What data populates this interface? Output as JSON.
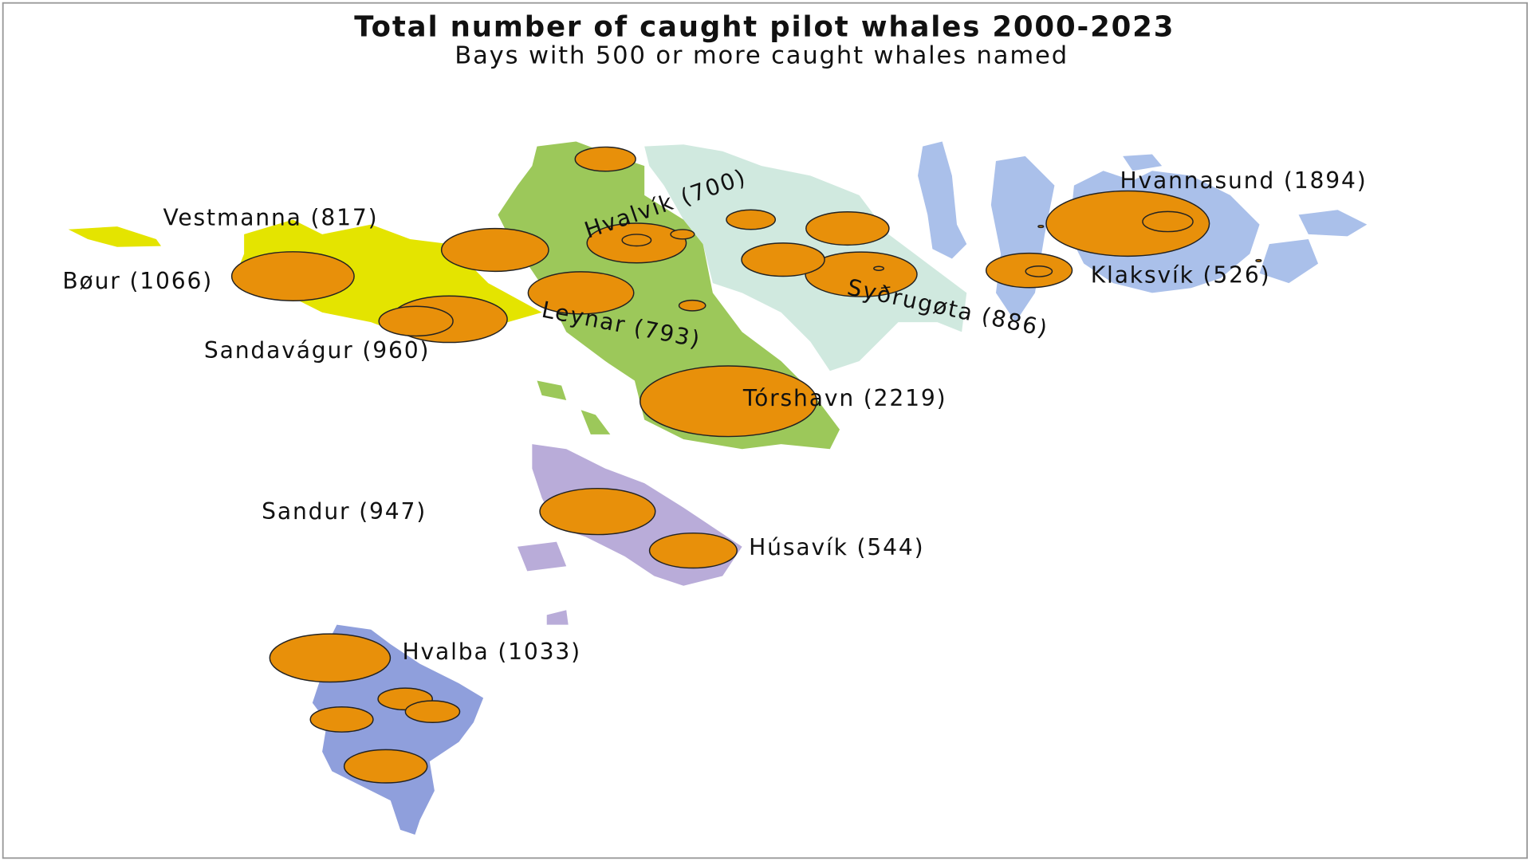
{
  "title": "Total number of caught pilot whales 2000-2023",
  "subtitle": "Bays with 500 or more caught whales named",
  "bays": [
    {
      "label": "Vestmanna (817)",
      "count": 817
    },
    {
      "label": "Bøur (1066)",
      "count": 1066
    },
    {
      "label": "Sandavágur (960)",
      "count": 960
    },
    {
      "label": "Hvalvík (700)",
      "count": 700
    },
    {
      "label": "Leynar (793)",
      "count": 793
    },
    {
      "label": "Syðrugøta (886)",
      "count": 886
    },
    {
      "label": "Klaksvík (526)",
      "count": 526
    },
    {
      "label": "Hvannasund (1894)",
      "count": 1894
    },
    {
      "label": "Tórshavn (2219)",
      "count": 2219
    },
    {
      "label": "Sandur (947)",
      "count": 947
    },
    {
      "label": "Húsavík (544)",
      "count": 544
    },
    {
      "label": "Hvalba (1033)",
      "count": 1033
    },
    {
      "count": 260
    },
    {
      "count": 170
    },
    {
      "count": 490
    },
    {
      "count": 490
    },
    {
      "count": 60
    },
    {
      "count": 40
    },
    {
      "count": 50
    },
    {
      "count": 7
    },
    {
      "count": 180
    },
    {
      "count": 50
    },
    {
      "count": 390
    },
    {
      "count": 210
    },
    {
      "count": 210
    },
    {
      "count": 280
    },
    {
      "count": 490
    },
    {
      "count": 2
    },
    {
      "count": 2
    }
  ]
}
